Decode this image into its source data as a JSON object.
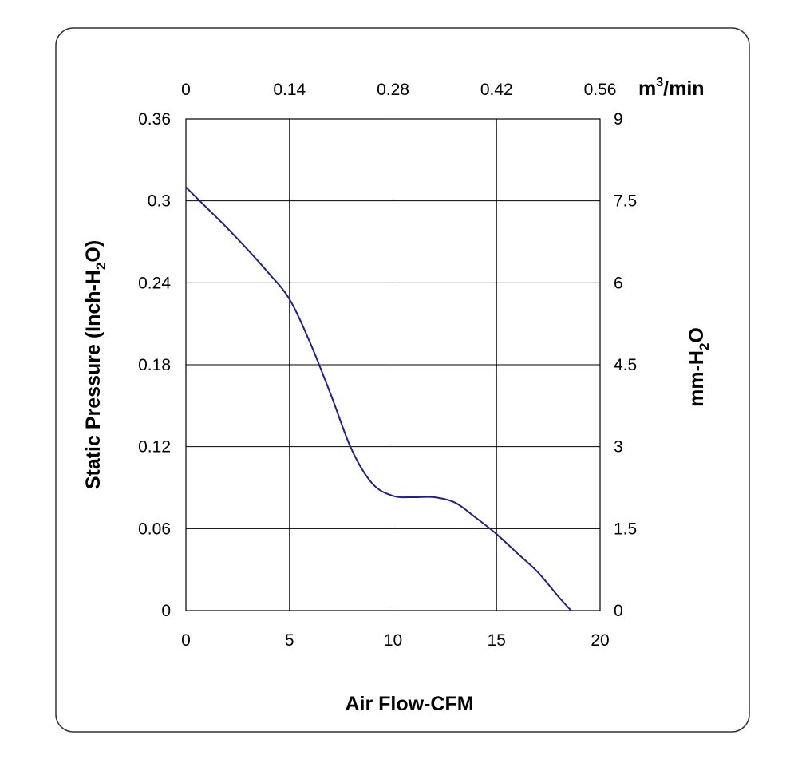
{
  "chart_data": {
    "type": "line",
    "xlabel": "Air Flow-CFM",
    "ylabel_parts": [
      "Static Pressure (Inch-H",
      "2",
      "O)"
    ],
    "y2label_parts": [
      "mm-H",
      "2",
      "O"
    ],
    "x2label_parts": [
      "m",
      "3",
      "/min"
    ],
    "xlim": [
      0,
      20
    ],
    "ylim": [
      0,
      0.36
    ],
    "x_ticks": [
      "0",
      "5",
      "10",
      "15",
      "20"
    ],
    "x_tick_values": [
      0,
      5,
      10,
      15,
      20
    ],
    "x2_ticks": [
      "0",
      "0.14",
      "0.28",
      "0.42",
      "0.56"
    ],
    "x2_tick_values": [
      0,
      0.14,
      0.28,
      0.42,
      0.56
    ],
    "x2lim": [
      0,
      0.56
    ],
    "y_ticks": [
      "0",
      "0.06",
      "0.12",
      "0.18",
      "0.24",
      "0.3",
      "0.36"
    ],
    "y_tick_values": [
      0,
      0.06,
      0.12,
      0.18,
      0.24,
      0.3,
      0.36
    ],
    "y2_ticks": [
      "0",
      "1.5",
      "3",
      "4.5",
      "6",
      "7.5",
      "9"
    ],
    "y2_tick_values": [
      0,
      1.5,
      3,
      4.5,
      6,
      7.5,
      9
    ],
    "y2lim": [
      0,
      9
    ],
    "grid": true,
    "series": [
      {
        "color": "#1f1f8c",
        "x": [
          0,
          1,
          2,
          3,
          4,
          5,
          6,
          7,
          8,
          9,
          10,
          11,
          12,
          13,
          14,
          15,
          16,
          17,
          18,
          18.6
        ],
        "y": [
          0.31,
          0.295,
          0.28,
          0.264,
          0.247,
          0.228,
          0.196,
          0.158,
          0.118,
          0.093,
          0.084,
          0.083,
          0.083,
          0.079,
          0.068,
          0.056,
          0.042,
          0.028,
          0.01,
          0
        ]
      }
    ]
  }
}
